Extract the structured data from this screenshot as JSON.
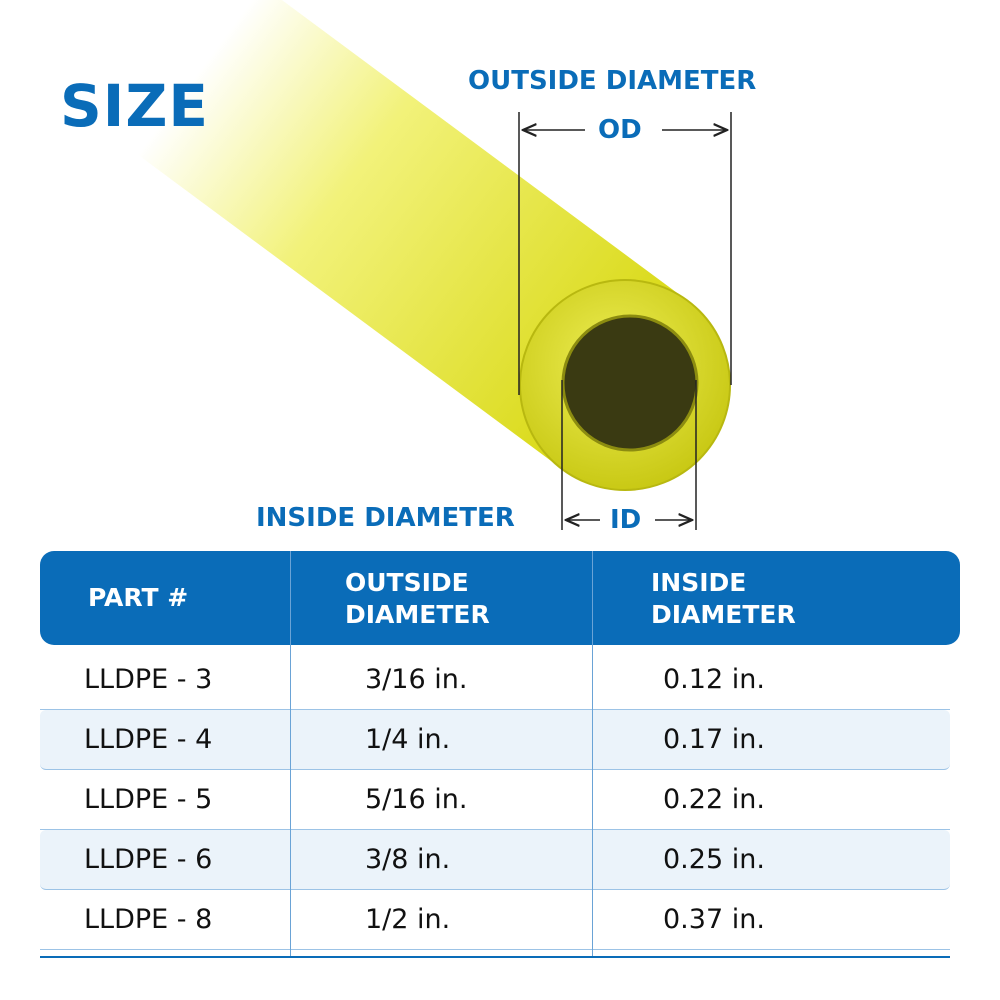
{
  "title": "SIZE",
  "diagram": {
    "outside_label": "OUTSIDE DIAMETER",
    "outside_abbr": "OD",
    "inside_label": "INSIDE DIAMETER",
    "inside_abbr": "ID",
    "tube_color": "#e6e62a",
    "accent": "#0a6cb8"
  },
  "table": {
    "headers": [
      "PART #",
      "OUTSIDE DIAMETER",
      "INSIDE DIAMETER"
    ],
    "rows": [
      {
        "part": "LLDPE - 3",
        "od": "3/16 in.",
        "id": "0.12 in."
      },
      {
        "part": "LLDPE - 4",
        "od": "1/4 in.",
        "id": "0.17 in."
      },
      {
        "part": "LLDPE - 5",
        "od": "5/16 in.",
        "id": "0.22 in."
      },
      {
        "part": "LLDPE - 6",
        "od": "3/8 in.",
        "id": "0.25 in."
      },
      {
        "part": "LLDPE - 8",
        "od": "1/2 in.",
        "id": "0.37 in."
      }
    ]
  }
}
